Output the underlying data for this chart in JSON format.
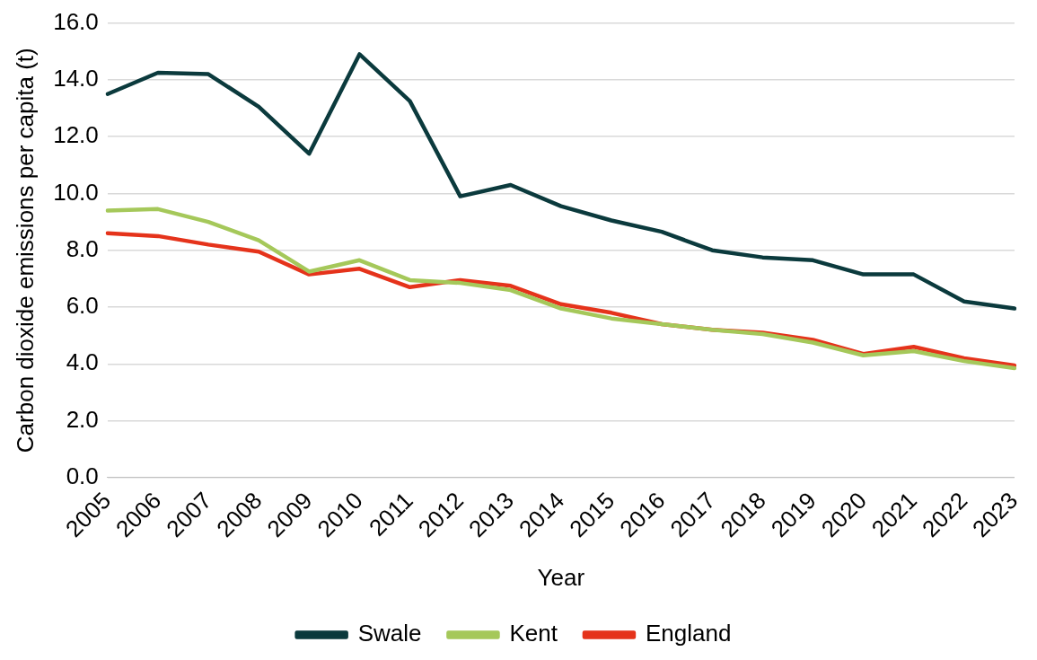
{
  "chart_data": {
    "type": "line",
    "xlabel": "Year",
    "ylabel": "Carbon dioxide emissions per capita (t)",
    "categories": [
      "2005",
      "2006",
      "2007",
      "2008",
      "2009",
      "2010",
      "2011",
      "2012",
      "2013",
      "2014",
      "2015",
      "2016",
      "2017",
      "2018",
      "2019",
      "2020",
      "2021",
      "2022",
      "2023"
    ],
    "series": [
      {
        "name": "Swale",
        "color": "#0b3a3d",
        "values": [
          13.5,
          14.25,
          14.2,
          13.05,
          11.4,
          14.9,
          13.25,
          9.9,
          10.3,
          9.55,
          9.05,
          8.65,
          8.0,
          7.75,
          7.65,
          7.15,
          7.15,
          6.2,
          5.95
        ]
      },
      {
        "name": "Kent",
        "color": "#a5c85a",
        "values": [
          9.4,
          9.45,
          9.0,
          8.35,
          7.25,
          7.65,
          6.95,
          6.85,
          6.6,
          5.95,
          5.6,
          5.4,
          5.2,
          5.05,
          4.75,
          4.3,
          4.45,
          4.1,
          3.85
        ]
      },
      {
        "name": "England",
        "color": "#e5331b",
        "values": [
          8.6,
          8.5,
          8.2,
          7.95,
          7.15,
          7.35,
          6.7,
          6.95,
          6.75,
          6.1,
          5.8,
          5.4,
          5.2,
          5.1,
          4.85,
          4.35,
          4.6,
          4.2,
          3.95
        ]
      }
    ],
    "ylim": [
      0,
      16
    ],
    "yticks": [
      {
        "value": 0,
        "label": "0.0"
      },
      {
        "value": 2,
        "label": "2.0"
      },
      {
        "value": 4,
        "label": "4.0"
      },
      {
        "value": 6,
        "label": "6.0"
      },
      {
        "value": 8,
        "label": "8.0"
      },
      {
        "value": 10,
        "label": "10.0"
      },
      {
        "value": 12,
        "label": "12.0"
      },
      {
        "value": 14,
        "label": "14.0"
      },
      {
        "value": 16,
        "label": "16.0"
      }
    ],
    "grid": "y",
    "legend": "bottom",
    "marker": "none",
    "line_style": "solid"
  }
}
